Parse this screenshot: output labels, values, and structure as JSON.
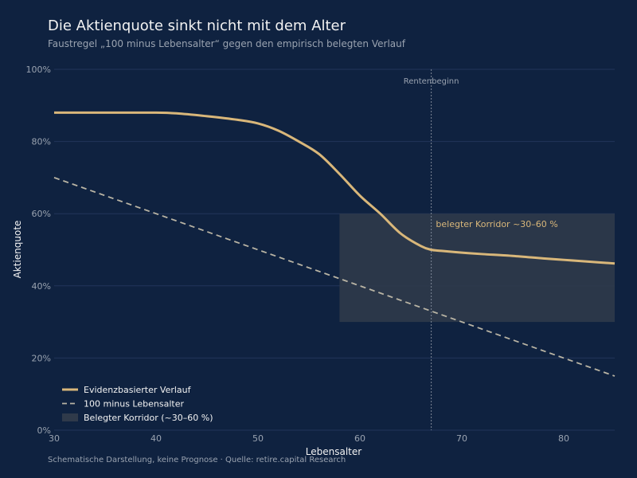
{
  "header": {
    "title": "Die Aktienquote sinkt nicht mit dem Alter",
    "subtitle": "Faustregel „100 minus Lebensalter“ gegen den empirisch belegten Verlauf"
  },
  "footnote": "Schematische Darstellung, keine Prognose · Quelle: retire.capital Research",
  "colors": {
    "background": "#0f2240",
    "evidence_line": "#d9b77a",
    "rule_line": "#b9b4a4",
    "band_fill": "#2f3a4a",
    "grid": "#22345a",
    "vline": "#7d8797"
  },
  "chart_data": {
    "type": "line",
    "xlabel": "Lebensalter",
    "ylabel": "Aktienquote",
    "xlim": [
      30,
      85
    ],
    "ylim": [
      0,
      100
    ],
    "x_ticks": [
      30,
      40,
      50,
      60,
      70,
      80
    ],
    "x_tick_labels": [
      "30",
      "40",
      "50",
      "60",
      "70",
      "80"
    ],
    "y_ticks": [
      0,
      20,
      40,
      60,
      80,
      100
    ],
    "y_tick_labels": [
      "0%",
      "20%",
      "40%",
      "60%",
      "80%",
      "100%"
    ],
    "grid": true,
    "series": [
      {
        "name": "Evidenzbasierter Verlauf",
        "style": "solid",
        "x": [
          30,
          35,
          40,
          42,
          45,
          48,
          50,
          52,
          54,
          56,
          58,
          60,
          62,
          64,
          66,
          67,
          68,
          70,
          72,
          75,
          78,
          80,
          82,
          85
        ],
        "y": [
          88,
          88,
          88,
          87.8,
          87,
          86,
          85,
          83,
          80,
          76.5,
          71,
          65,
          60,
          54.5,
          51,
          50,
          49.7,
          49.2,
          48.8,
          48.3,
          47.6,
          47.2,
          46.8,
          46.2
        ]
      },
      {
        "name": "100 minus Lebensalter",
        "style": "dashed",
        "x": [
          30,
          85
        ],
        "y": [
          70,
          15
        ]
      }
    ],
    "bands": [
      {
        "name": "Belegter Korridor (~30–60 %)",
        "label": "belegter Korridor ~30–60 %",
        "x0": 58,
        "x1": 85,
        "y0": 30,
        "y1": 60
      }
    ],
    "vlines": [
      {
        "x": 67,
        "label": "Rentenbeginn",
        "style": "dotted"
      }
    ],
    "legend": {
      "placement": "bottom-left",
      "entries": [
        {
          "label": "Evidenzbasierter Verlauf",
          "kind": "line"
        },
        {
          "label": "100 minus Lebensalter",
          "kind": "dashed"
        },
        {
          "label": "Belegter Korridor (~30–60 %)",
          "kind": "band"
        }
      ]
    }
  }
}
